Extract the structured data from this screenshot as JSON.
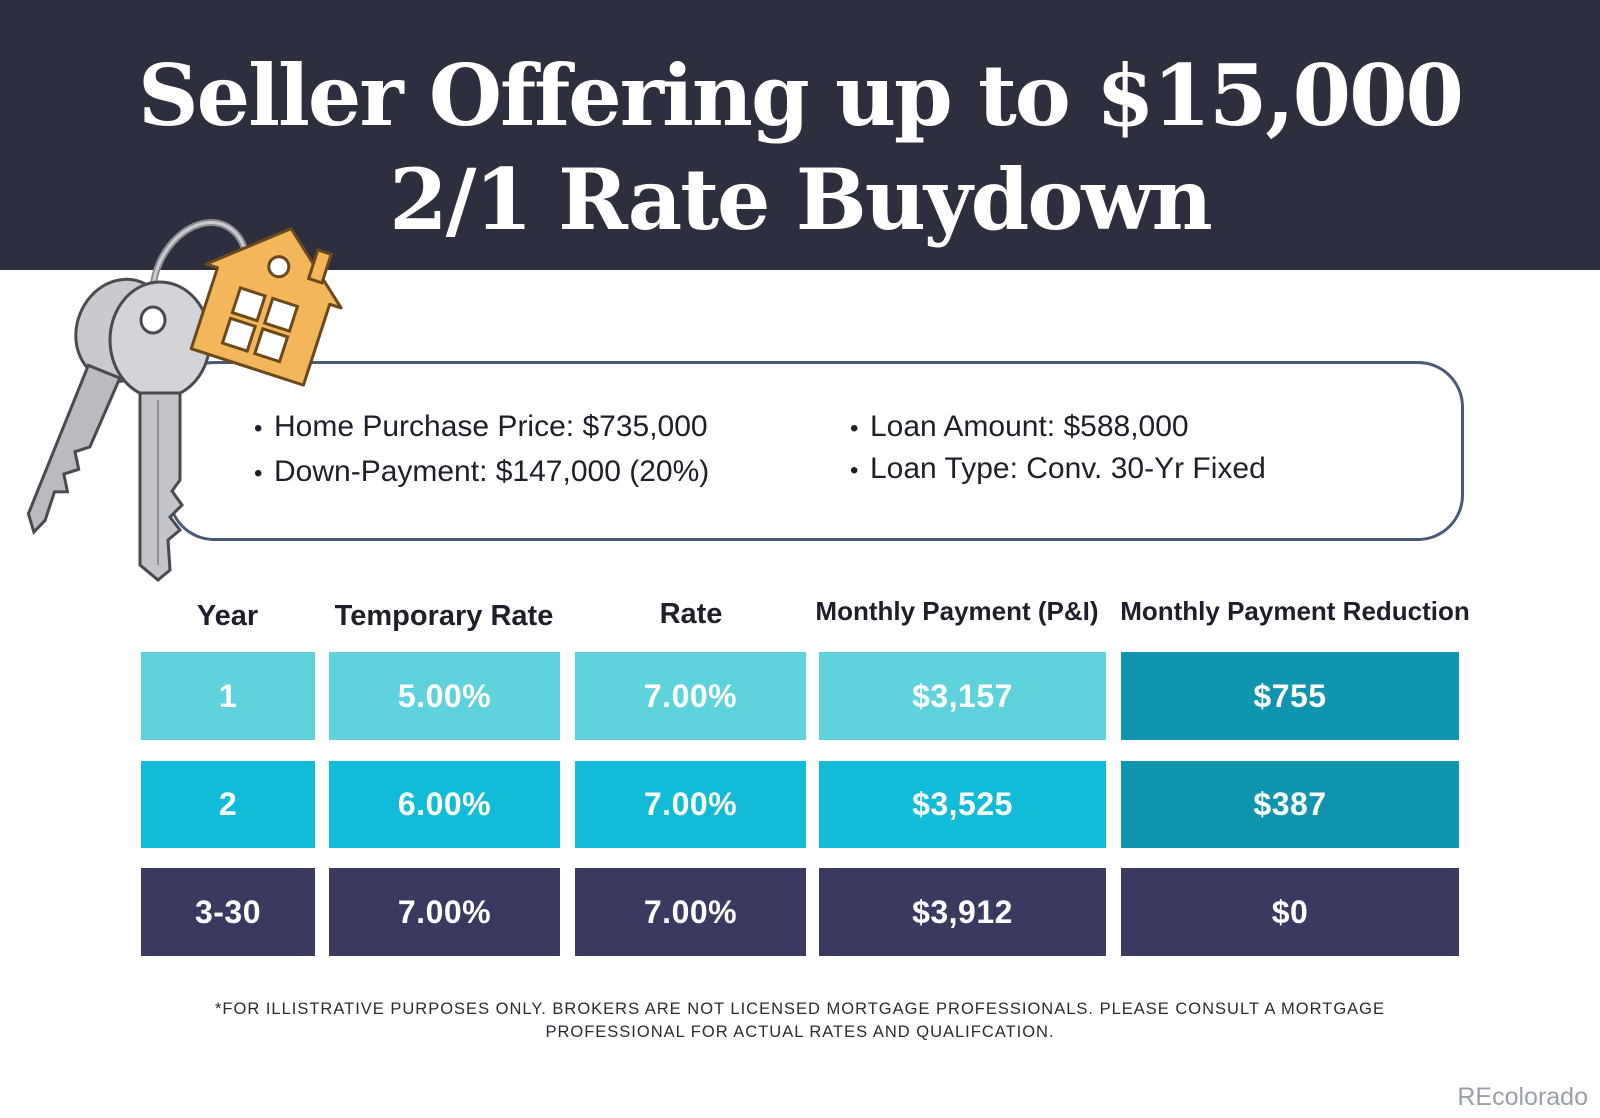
{
  "header": {
    "title_line1": "Seller Offering up to $15,000",
    "title_line2": "2/1 Rate Buydown",
    "background_color": "#2e2f3e"
  },
  "details": {
    "purchase_price": "Home Purchase Price: $735,000",
    "down_payment": "Down-Payment: $147,000 (20%)",
    "loan_amount": "Loan Amount: $588,000",
    "loan_type": "Loan Type: Conv. 30-Yr Fixed"
  },
  "table": {
    "headers": [
      "Year",
      "Temporary Rate",
      "Rate",
      "Monthly Payment (P&I)",
      "Monthly Payment Reduction"
    ],
    "rows": [
      {
        "year": "1",
        "temporary_rate": "5.00%",
        "rate": "7.00%",
        "monthly_payment": "$3,157",
        "reduction": "$755",
        "color": "#5ed3dc",
        "reduction_color": "#0f95ae"
      },
      {
        "year": "2",
        "temporary_rate": "6.00%",
        "rate": "7.00%",
        "monthly_payment": "$3,525",
        "reduction": "$387",
        "color": "#12bcd9",
        "reduction_color": "#0f95ae"
      },
      {
        "year": "3-30",
        "temporary_rate": "7.00%",
        "rate": "7.00%",
        "monthly_payment": "$3,912",
        "reduction": "$0",
        "color": "#3a3960",
        "reduction_color": "#3a3960"
      }
    ]
  },
  "disclaimer_line1": "*FOR ILLISTRATIVE PURPOSES ONLY. BROKERS ARE NOT LICENSED MORTGAGE PROFESSIONALS. PLEASE CONSULT A MORTGAGE",
  "disclaimer_line2": "PROFESSIONAL FOR ACTUAL RATES AND QUALIFCATION.",
  "watermark": "REcolorado",
  "icons": {
    "keys": "house-keychain-keys-icon"
  }
}
